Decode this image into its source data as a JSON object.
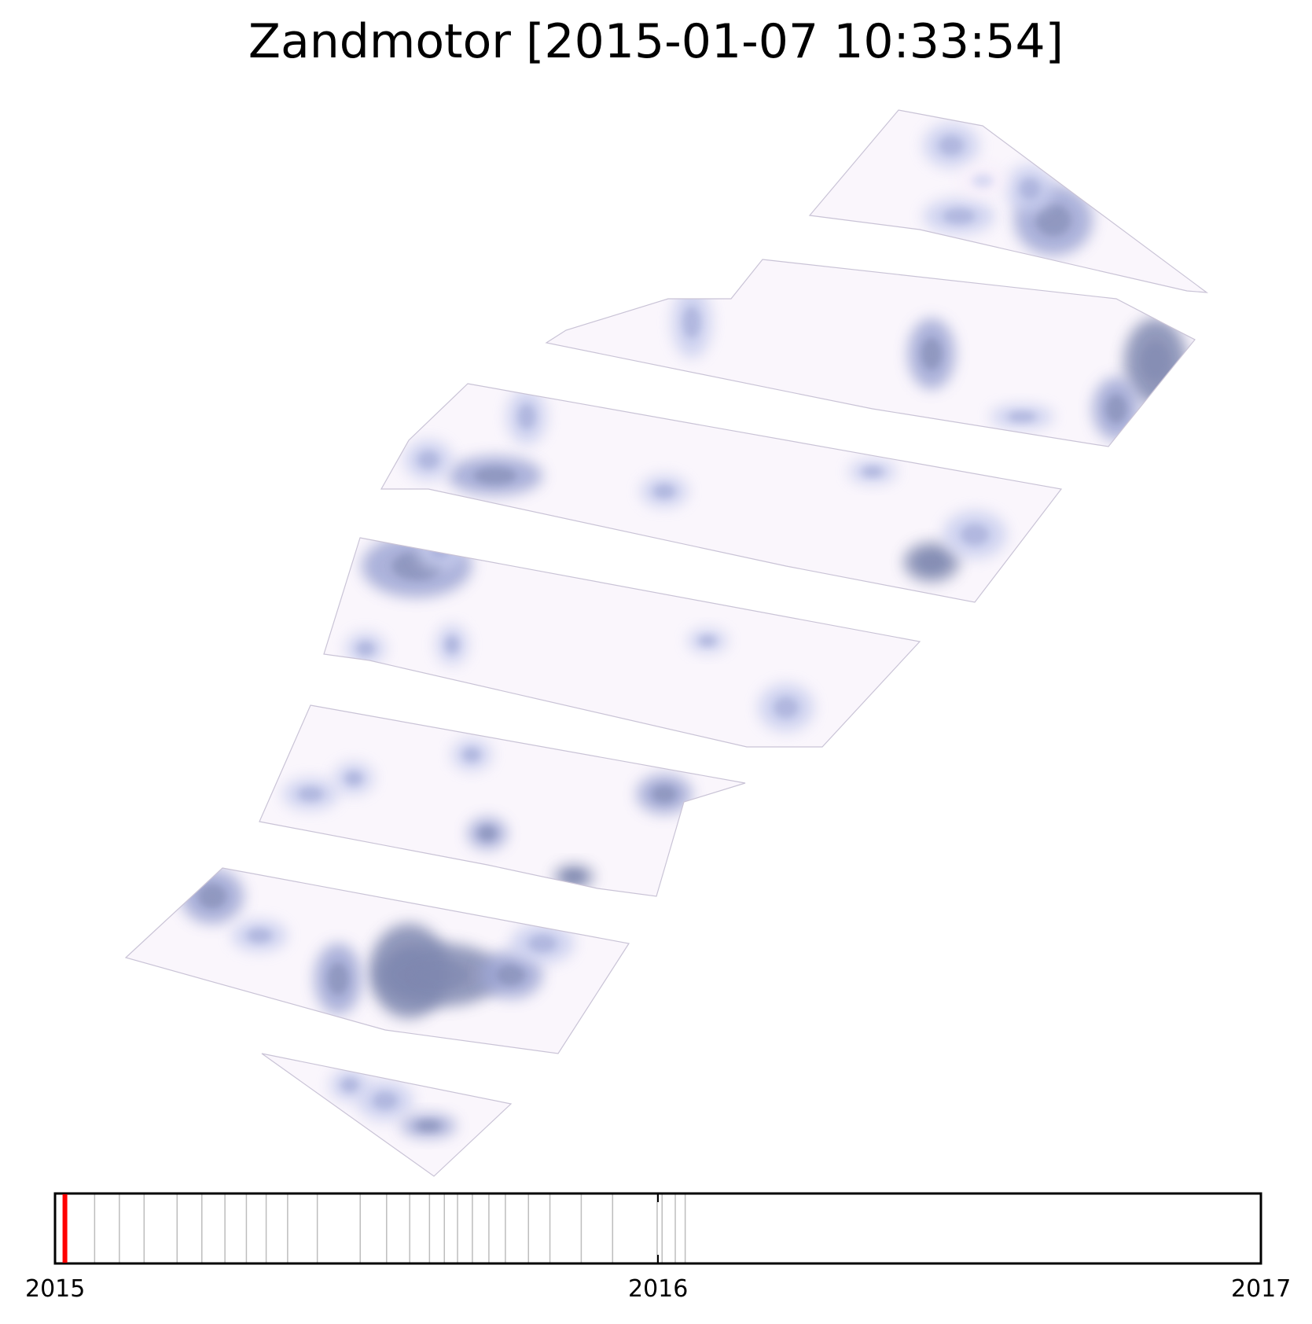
{
  "title": "Zandmotor [2015-01-07 10:33:54]",
  "chart_data": {
    "type": "heatmap",
    "title": "Zandmotor [2015-01-07 10:33:54]",
    "colormap": [
      "#ffffff",
      "#f6eefa",
      "#c8cdee",
      "#9ea6d4",
      "#7f88b0"
    ],
    "timeline": {
      "type": "timeline",
      "range": [
        "2015-01-01",
        "2017-01-01"
      ],
      "tick_labels": [
        "2015",
        "2016",
        "2017"
      ],
      "current": "2015-01-07",
      "current_color": "#ff0000",
      "survey_dates": [
        "2015-01-07",
        "2015-01-25",
        "2015-02-09",
        "2015-02-24",
        "2015-03-16",
        "2015-03-31",
        "2015-04-14",
        "2015-04-27",
        "2015-05-09",
        "2015-05-22",
        "2015-06-09",
        "2015-07-05",
        "2015-07-21",
        "2015-08-04",
        "2015-08-16",
        "2015-08-25",
        "2015-09-02",
        "2015-09-11",
        "2015-09-21",
        "2015-10-01",
        "2015-10-15",
        "2015-10-28",
        "2015-11-16",
        "2015-12-05",
        "2016-01-01",
        "2016-01-04",
        "2016-01-12",
        "2016-01-18"
      ]
    }
  }
}
